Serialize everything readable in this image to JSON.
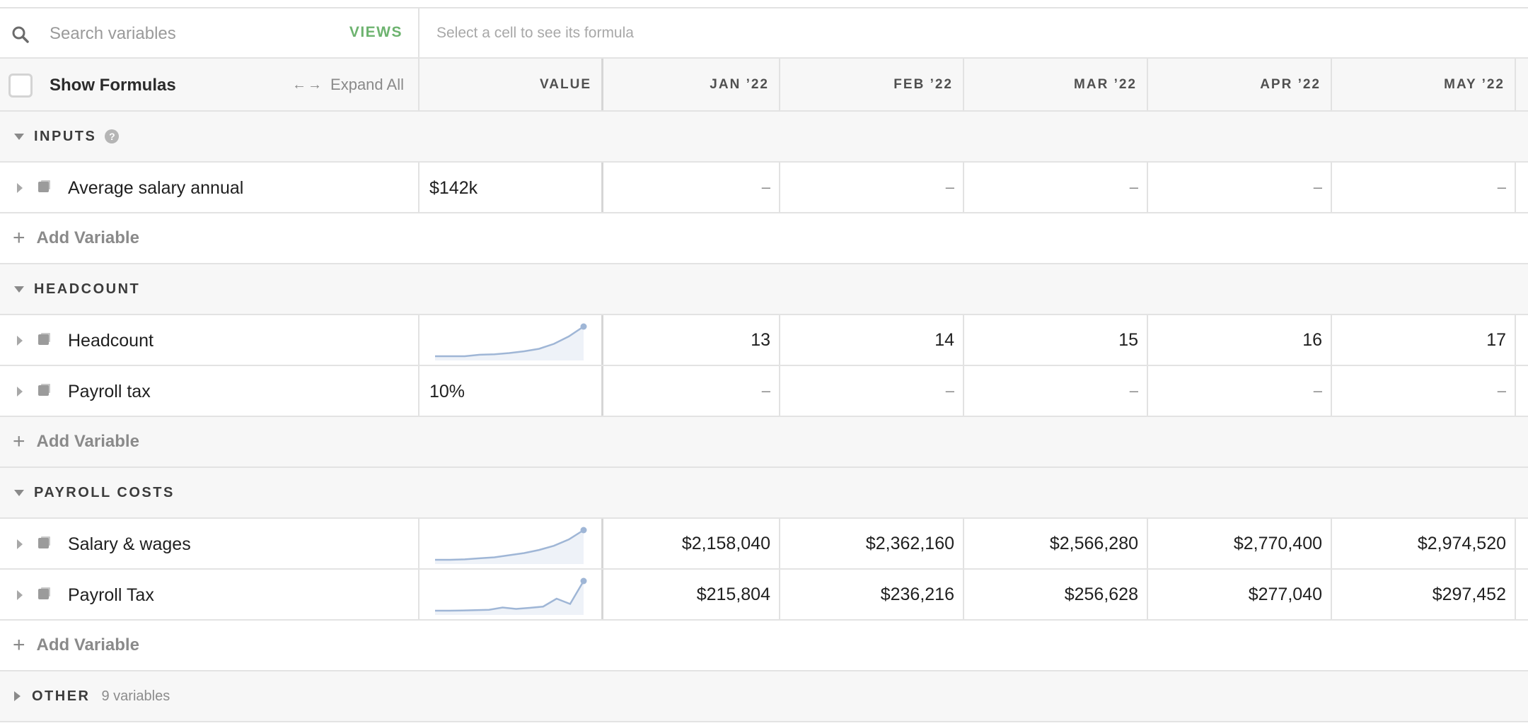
{
  "search": {
    "placeholder": "Search variables",
    "views_label": "VIEWS"
  },
  "formula_bar": {
    "hint": "Select a cell to see its formula"
  },
  "header": {
    "show_formulas_label": "Show Formulas",
    "expand_all_label": "Expand All",
    "value_label": "VALUE",
    "months": [
      "JAN ’22",
      "FEB ’22",
      "MAR ’22",
      "APR ’22",
      "MAY ’22"
    ]
  },
  "sections": {
    "inputs": {
      "title": "INPUTS",
      "help_icon": "question-circle-icon",
      "rows": [
        {
          "name": "Average salary annual",
          "value": "$142k",
          "cells": [
            "–",
            "–",
            "–",
            "–",
            "–"
          ]
        }
      ],
      "add_label": "Add Variable"
    },
    "headcount": {
      "title": "HEADCOUNT",
      "rows": [
        {
          "name": "Headcount",
          "value": "",
          "sparkline": [
            13,
            13,
            13,
            13.6,
            13.8,
            14.3,
            15,
            16,
            18,
            21,
            25
          ],
          "cells": [
            "13",
            "14",
            "15",
            "16",
            "17"
          ]
        },
        {
          "name": "Payroll tax",
          "value": "10%",
          "cells": [
            "–",
            "–",
            "–",
            "–",
            "–"
          ]
        }
      ],
      "add_label": "Add Variable"
    },
    "payroll_costs": {
      "title": "PAYROLL COSTS",
      "rows": [
        {
          "name": "Salary & wages",
          "value": "",
          "sparkline": [
            2.16,
            2.16,
            2.2,
            2.3,
            2.4,
            2.6,
            2.8,
            3.1,
            3.5,
            4.1,
            5.0
          ],
          "cells": [
            "$2,158,040",
            "$2,362,160",
            "$2,566,280",
            "$2,770,400",
            "$2,974,520"
          ]
        },
        {
          "name": "Payroll Tax",
          "value": "",
          "sparkline": [
            0.22,
            0.22,
            0.23,
            0.25,
            0.27,
            0.4,
            0.32,
            0.38,
            0.45,
            0.9,
            0.6,
            1.9
          ],
          "cells": [
            "$215,804",
            "$236,216",
            "$256,628",
            "$277,040",
            "$297,452"
          ]
        }
      ],
      "add_label": "Add Variable"
    },
    "other": {
      "title": "OTHER",
      "count": "9 variables"
    }
  },
  "colors": {
    "accent": "#6db36f",
    "sparkline": "#9fb6d6"
  }
}
